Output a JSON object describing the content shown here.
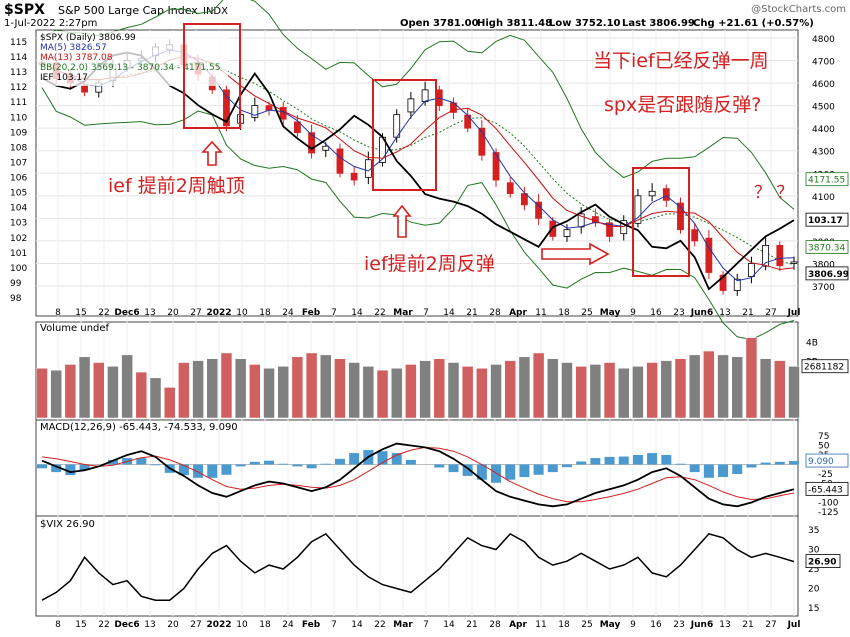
{
  "header": {
    "symbol": "$SPX",
    "name": "S&P 500 Large Cap Index",
    "exchange": "INDX",
    "date": "1-Jul-2022 2:27pm",
    "open": "Open 3781.00",
    "high": "High 3811.48",
    "low": "Low 3752.10",
    "last": "Last 3806.99",
    "chg": "Chg +21.61 (+0.57%)",
    "credit": "@StockCharts.com"
  },
  "legend": [
    {
      "text": "$SPX (Daily) 3806.99",
      "color": "#000000"
    },
    {
      "text": "MA(5) 3826.57",
      "color": "#2233aa"
    },
    {
      "text": "MA(13) 3787.08",
      "color": "#cc1111"
    },
    {
      "text": "BB(20,2.0) 3569.13 - 3870.34 - 4171.55",
      "color": "#227722"
    },
    {
      "text": "IEF 103.17",
      "color": "#000000"
    }
  ],
  "annotations": {
    "top_right_1": "当下ief已经反弹一周",
    "top_right_2": "spx是否跟随反弹?",
    "left_mid": "ief 提前2周触顶",
    "mid_bottom": "ief提前2周反弹",
    "question_marks": "？ ？"
  },
  "colors": {
    "red": "#d42020",
    "green": "#2a7a2a",
    "blue": "#2233aa",
    "volgray": "#808080",
    "volred": "#d06060",
    "hist": "#4a9ad0"
  },
  "panels": {
    "volume_label": "Volume undef",
    "macd_label": "MACD(12,26,9) -65.443, -74.533, 9.090",
    "vix_label": "$VIX 26.90"
  },
  "chart_data": [
    {
      "type": "line",
      "title": "$SPX S&P 500 Large Cap Index INDX",
      "left_axis_ticks": [
        "115",
        "114",
        "113",
        "112",
        "111",
        "110",
        "109",
        "108",
        "107",
        "106",
        "105",
        "104",
        "103",
        "102",
        "101",
        "100",
        "99",
        "98"
      ],
      "right_axis_ticks": [
        "4800",
        "4700",
        "4600",
        "4500",
        "4400",
        "4300",
        "4200",
        "4100",
        "4000",
        "3900",
        "3800",
        "3700"
      ],
      "right_value_labels": [
        "4171.55",
        "103.17",
        "3870.34",
        "3806.99"
      ],
      "x_tick_labels": [
        "8",
        "15",
        "22",
        "Dec6",
        "13",
        "20",
        "27",
        "2022",
        "10",
        "18",
        "24",
        "Feb",
        "7",
        "14",
        "22",
        "Mar",
        "7",
        "14",
        "21",
        "28",
        "Apr",
        "11",
        "18",
        "25",
        "May",
        "9",
        "16",
        "23",
        "Jun6",
        "13",
        "21",
        "27",
        "Jul"
      ],
      "series": [
        {
          "name": "$SPX",
          "values": [
            4690,
            4620,
            4600,
            4560,
            4600,
            4680,
            4700,
            4710,
            4760,
            4770,
            4680,
            4640,
            4570,
            4410,
            4460,
            4500,
            4480,
            4440,
            4380,
            4290,
            4320,
            4200,
            4170,
            4260,
            4360,
            4460,
            4530,
            4570,
            4500,
            4470,
            4400,
            4280,
            4170,
            4110,
            4060,
            4000,
            3920,
            3950,
            4020,
            3980,
            3920,
            3990,
            4100,
            4120,
            4080,
            3950,
            3900,
            3760,
            3680,
            3730,
            3800,
            3880,
            3790,
            3806.99
          ]
        },
        {
          "name": "IEF",
          "values": [
            112.6,
            112.1,
            111.9,
            112.4,
            113.4,
            114.1,
            114.3,
            114.1,
            113.2,
            112.1,
            111.6,
            110.8,
            110.2,
            109.7,
            111.5,
            112.9,
            111.6,
            109.4,
            108.6,
            107.9,
            108.5,
            109.2,
            110.1,
            109.5,
            108.7,
            107.1,
            106.1,
            104.9,
            104.6,
            104.4,
            104.1,
            103.6,
            102.9,
            102.4,
            101.9,
            101.4,
            102.7,
            103.1,
            103.7,
            104.2,
            103.4,
            102.9,
            102.5,
            101.4,
            101.3,
            101.8,
            100.7,
            98.6,
            99.4,
            100.3,
            101.2,
            102.1,
            102.6,
            103.17
          ]
        }
      ],
      "bollinger_upper_last": 4171.55,
      "bollinger_mid_last": 3870.34,
      "bollinger_lower_last": 3569.13
    },
    {
      "type": "bar",
      "title": "Volume undef",
      "axis_ticks": [
        "4B",
        "3B",
        "2681182"
      ],
      "values": [
        2.6,
        2.5,
        2.8,
        3.2,
        2.9,
        2.7,
        3.3,
        2.4,
        2.1,
        1.6,
        2.9,
        3.0,
        3.1,
        3.4,
        3.1,
        2.8,
        2.6,
        2.7,
        3.2,
        3.4,
        3.3,
        3.1,
        2.9,
        2.7,
        2.5,
        2.6,
        2.8,
        3.0,
        3.1,
        2.9,
        2.7,
        2.6,
        2.8,
        3.0,
        3.2,
        3.4,
        3.1,
        2.9,
        2.7,
        2.8,
        2.9,
        2.6,
        2.7,
        2.9,
        3.0,
        3.1,
        3.3,
        3.5,
        3.3,
        3.2,
        4.2,
        3.1,
        3.0,
        2.7
      ],
      "up": [
        false,
        true,
        false,
        true,
        false,
        true,
        true,
        false,
        true,
        false,
        false,
        true,
        true,
        false,
        true,
        false,
        true,
        true,
        false,
        false,
        true,
        false,
        true,
        true,
        false,
        true,
        false,
        true,
        false,
        true,
        false,
        false,
        true,
        false,
        true,
        false,
        true,
        true,
        false,
        true,
        false,
        true,
        true,
        false,
        true,
        false,
        true,
        false,
        true,
        true,
        false,
        true,
        false,
        true
      ]
    },
    {
      "type": "line",
      "title": "MACD(12,26,9) -65.443, -74.533, 9.090",
      "axis_ticks": [
        "75",
        "50",
        "25",
        "0",
        "-25",
        "-50",
        "-75",
        "-100",
        "-125"
      ],
      "right_value_labels": [
        "9.090",
        "-65.443",
        "-74.533"
      ],
      "series": [
        {
          "name": "MACD",
          "values": [
            10,
            -5,
            -20,
            -15,
            -5,
            10,
            25,
            35,
            20,
            -10,
            -30,
            -55,
            -75,
            -85,
            -70,
            -55,
            -45,
            -50,
            -60,
            -70,
            -60,
            -40,
            -10,
            20,
            40,
            55,
            50,
            45,
            35,
            15,
            -10,
            -40,
            -70,
            -85,
            -95,
            -105,
            -110,
            -105,
            -90,
            -75,
            -65,
            -55,
            -40,
            -20,
            -10,
            -30,
            -60,
            -90,
            -105,
            -110,
            -100,
            -85,
            -75,
            -65
          ]
        },
        {
          "name": "Signal",
          "values": [
            20,
            15,
            8,
            0,
            -5,
            -2,
            8,
            18,
            22,
            12,
            -2,
            -20,
            -40,
            -58,
            -65,
            -62,
            -55,
            -52,
            -55,
            -60,
            -62,
            -55,
            -40,
            -18,
            5,
            25,
            38,
            45,
            43,
            35,
            20,
            0,
            -22,
            -45,
            -62,
            -78,
            -90,
            -98,
            -98,
            -92,
            -85,
            -76,
            -65,
            -50,
            -35,
            -32,
            -40,
            -55,
            -72,
            -85,
            -92,
            -90,
            -82,
            -75
          ]
        }
      ],
      "histogram": [
        -10,
        -20,
        -28,
        -15,
        0,
        12,
        17,
        17,
        -2,
        -22,
        -28,
        -35,
        -35,
        -27,
        -5,
        7,
        10,
        2,
        -5,
        -10,
        2,
        15,
        30,
        38,
        35,
        30,
        12,
        0,
        -8,
        -20,
        -30,
        -40,
        -48,
        -40,
        -33,
        -27,
        -20,
        -7,
        8,
        17,
        20,
        21,
        25,
        30,
        25,
        2,
        -20,
        -35,
        -33,
        -25,
        -8,
        5,
        7,
        9
      ]
    },
    {
      "type": "line",
      "title": "$VIX 26.90",
      "axis_ticks": [
        "35",
        "30",
        "25",
        "20",
        "15"
      ],
      "right_value_labels": [
        "26.90"
      ],
      "series": [
        {
          "name": "$VIX",
          "values": [
            17,
            19,
            22,
            28,
            24,
            21,
            22,
            18,
            17,
            17,
            20,
            25,
            29,
            31,
            27,
            24,
            26,
            25,
            28,
            32,
            34,
            30,
            26,
            23,
            21,
            20,
            19,
            22,
            25,
            29,
            33,
            31,
            30,
            34,
            32,
            28,
            26,
            27,
            29,
            27,
            25,
            26,
            28,
            24,
            23,
            26,
            30,
            34,
            33,
            30,
            28,
            29,
            28,
            26.9
          ]
        }
      ]
    }
  ]
}
